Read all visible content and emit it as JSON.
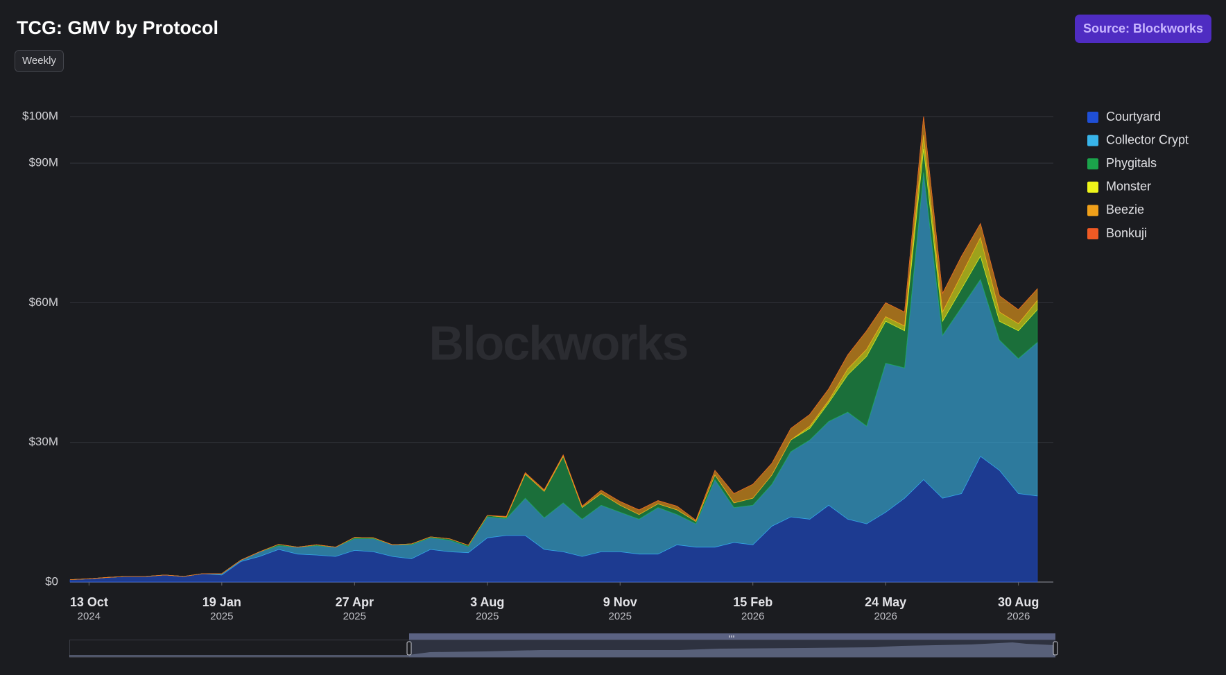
{
  "chart_data": {
    "type": "stacked-area",
    "title": "TCG: GMV by Protocol",
    "interval": "Weekly",
    "source": "Source: Blockworks",
    "watermark": "Blockworks",
    "x": [
      "2024-09-29",
      "2024-10-13",
      "2024-10-27",
      "2024-11-10",
      "2024-11-24",
      "2024-12-08",
      "2024-12-22",
      "2025-01-05",
      "2025-01-19",
      "2025-02-02",
      "2025-02-16",
      "2025-03-02",
      "2025-03-16",
      "2025-03-30",
      "2025-04-13",
      "2025-04-27",
      "2025-05-11",
      "2025-05-25",
      "2025-06-08",
      "2025-06-22",
      "2025-07-06",
      "2025-07-20",
      "2025-08-03",
      "2025-08-17",
      "2025-08-31",
      "2025-09-14",
      "2025-09-28",
      "2025-10-12",
      "2025-10-26",
      "2025-11-09",
      "2025-11-23",
      "2025-12-07",
      "2025-12-21",
      "2026-01-04",
      "2026-01-18",
      "2026-02-01",
      "2026-02-15",
      "2026-03-01",
      "2026-03-15",
      "2026-03-29",
      "2026-04-12",
      "2026-04-26",
      "2026-05-10",
      "2026-05-24",
      "2026-06-07",
      "2026-06-21",
      "2026-07-05",
      "2026-07-19",
      "2026-08-02",
      "2026-08-16",
      "2026-08-30",
      "2026-09-13"
    ],
    "xlim": [
      "2024-09-29",
      "2026-09-13"
    ],
    "xticks": [
      {
        "value": "2024-10-13",
        "label": "13 Oct",
        "year": "2024"
      },
      {
        "value": "2025-01-19",
        "label": "19 Jan",
        "year": "2025"
      },
      {
        "value": "2025-04-27",
        "label": "27 Apr",
        "year": "2025"
      },
      {
        "value": "2025-08-03",
        "label": "3 Aug",
        "year": "2025"
      },
      {
        "value": "2025-11-09",
        "label": "9 Nov",
        "year": "2025"
      },
      {
        "value": "2026-02-15",
        "label": "15 Feb",
        "year": "2026"
      },
      {
        "value": "2026-05-24",
        "label": "24 May",
        "year": "2026"
      },
      {
        "value": "2026-08-30",
        "label": "30 Aug",
        "year": "2026"
      }
    ],
    "ylim": [
      0,
      100
    ],
    "yticks": [
      {
        "value": 0,
        "label": "$0"
      },
      {
        "value": 30,
        "label": "$30M"
      },
      {
        "value": 60,
        "label": "$60M"
      },
      {
        "value": 90,
        "label": "$90M"
      },
      {
        "value": 100,
        "label": "$100M"
      }
    ],
    "grid": true,
    "legend": "right",
    "series": [
      {
        "name": "Courtyard",
        "color": "#1f4fd6",
        "values": [
          0.5,
          0.7,
          1.0,
          1.2,
          1.2,
          1.5,
          1.2,
          1.8,
          1.5,
          4.4,
          5.5,
          7,
          6,
          5.8,
          5.5,
          6.8,
          6.5,
          5.5,
          5,
          7,
          6.5,
          6.3,
          9.5,
          10,
          10,
          7,
          6.5,
          5.5,
          6.5,
          6.5,
          6,
          6,
          8,
          7.5,
          7.5,
          8.5,
          8,
          12,
          14,
          13.5,
          16.5,
          13.5,
          12.5,
          15,
          18,
          22,
          18,
          19,
          27,
          24,
          19,
          18.5
        ]
      },
      {
        "name": "Collector Crypt",
        "color": "#38b4ea",
        "values": [
          0,
          0,
          0,
          0,
          0,
          0,
          0,
          0,
          0.3,
          0.3,
          1,
          0.8,
          1.5,
          2,
          2,
          2.5,
          2.8,
          2.5,
          3,
          2.5,
          2.5,
          1.3,
          4.5,
          3.6,
          8,
          6.8,
          10.5,
          8,
          10,
          8.5,
          7.5,
          10,
          6.5,
          5,
          14.5,
          7.5,
          8.5,
          9,
          14,
          17,
          18,
          23,
          21,
          32,
          28,
          66,
          35,
          40,
          38,
          28,
          29,
          33
        ]
      },
      {
        "name": "Phygitals",
        "color": "#1ba34b",
        "values": [
          0,
          0,
          0,
          0,
          0,
          0,
          0,
          0,
          0,
          0,
          0,
          0.3,
          0,
          0.2,
          0,
          0.3,
          0.2,
          0,
          0.2,
          0.2,
          0.3,
          0.3,
          0.3,
          0.3,
          5.2,
          5.7,
          10,
          2.5,
          2.5,
          1.5,
          1,
          0.8,
          1,
          0.5,
          1,
          1,
          1.5,
          2,
          2.5,
          2.5,
          4,
          8,
          15,
          9,
          8,
          5,
          3,
          4,
          5,
          4,
          6,
          7
        ]
      },
      {
        "name": "Monster",
        "color": "#eef51a",
        "values": [
          0,
          0,
          0,
          0,
          0,
          0,
          0,
          0,
          0,
          0,
          0,
          0,
          0,
          0,
          0,
          0,
          0,
          0,
          0,
          0,
          0,
          0,
          0,
          0,
          0,
          0,
          0,
          0,
          0,
          0,
          0,
          0,
          0,
          0,
          0,
          0,
          0,
          0,
          0,
          0.5,
          0.5,
          1.3,
          1.5,
          1,
          1,
          3,
          2,
          3,
          4,
          2,
          1.5,
          2
        ]
      },
      {
        "name": "Beezie",
        "color": "#f0a01a",
        "values": [
          0,
          0,
          0,
          0,
          0,
          0,
          0,
          0,
          0,
          0,
          0,
          0,
          0,
          0,
          0,
          0,
          0,
          0,
          0,
          0,
          0,
          0,
          0,
          0.2,
          0.3,
          0.3,
          0.3,
          0.3,
          0.7,
          0.8,
          1,
          0.7,
          0.8,
          0.3,
          1,
          2,
          3,
          2.5,
          2.5,
          2.5,
          2.5,
          3,
          4,
          3,
          3,
          4,
          4,
          4,
          3,
          3.5,
          3,
          2.5
        ]
      },
      {
        "name": "Bonkuji",
        "color": "#f05a24",
        "values": [
          0,
          0,
          0,
          0,
          0,
          0,
          0,
          0,
          0,
          0,
          0,
          0,
          0,
          0,
          0,
          0,
          0,
          0,
          0,
          0,
          0,
          0,
          0,
          0,
          0,
          0,
          0,
          0,
          0,
          0,
          0,
          0,
          0,
          0,
          0,
          0,
          0,
          0,
          0,
          0,
          0,
          0,
          0,
          0,
          0,
          0,
          0,
          0,
          0,
          0,
          0,
          0
        ]
      }
    ]
  }
}
